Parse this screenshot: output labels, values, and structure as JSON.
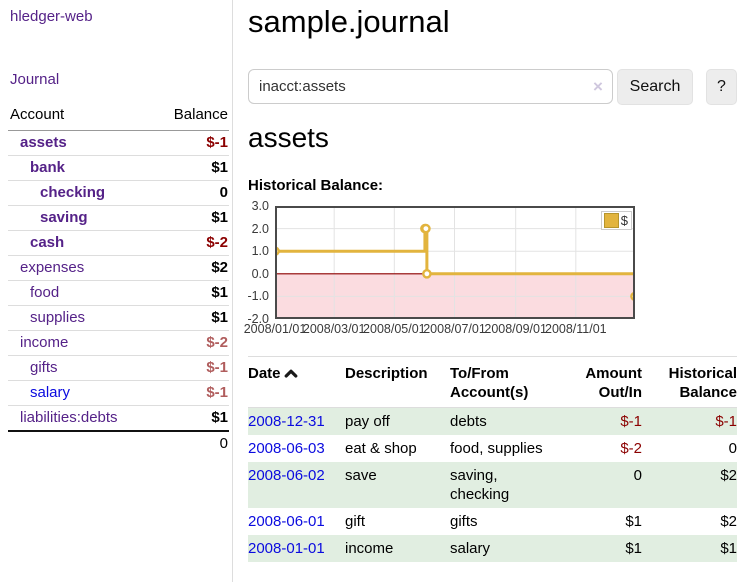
{
  "theme": {
    "link-purple": "#552288",
    "link-blue": "#0b0bdf",
    "negative": "#8b0000",
    "negative-soft": "#b05d5d",
    "stripe-green": "#e1eee1",
    "series-gold": "#e2b43e"
  },
  "app": {
    "title": "hledger-web"
  },
  "sidebar": {
    "nav": {
      "journal_label": "Journal"
    },
    "accounts": {
      "headers": {
        "account": "Account",
        "balance": "Balance"
      },
      "rows": [
        {
          "name": "assets",
          "indent": 0,
          "matched": true,
          "balance": "$-1",
          "tone": "neg"
        },
        {
          "name": "bank",
          "indent": 1,
          "matched": true,
          "balance": "$1",
          "tone": "pos"
        },
        {
          "name": "checking",
          "indent": 2,
          "matched": true,
          "balance": "0",
          "tone": "pos"
        },
        {
          "name": "saving",
          "indent": 2,
          "matched": true,
          "balance": "$1",
          "tone": "pos"
        },
        {
          "name": "cash",
          "indent": 1,
          "matched": true,
          "balance": "$-2",
          "tone": "neg"
        },
        {
          "name": "expenses",
          "indent": 0,
          "matched": false,
          "balance": "$2",
          "tone": "pos"
        },
        {
          "name": "food",
          "indent": 1,
          "matched": false,
          "balance": "$1",
          "tone": "pos"
        },
        {
          "name": "supplies",
          "indent": 1,
          "matched": false,
          "balance": "$1",
          "tone": "pos"
        },
        {
          "name": "income",
          "indent": 0,
          "matched": false,
          "balance": "$-2",
          "tone": "neg-soft"
        },
        {
          "name": "gifts",
          "indent": 1,
          "matched": false,
          "balance": "$-1",
          "tone": "neg-soft"
        },
        {
          "name": "salary",
          "indent": 1,
          "matched": false,
          "balance": "$-1",
          "tone": "neg-soft",
          "link_style": "unvisited"
        },
        {
          "name": "liabilities:debts",
          "indent": 0,
          "matched": false,
          "balance": "$1",
          "tone": "pos"
        }
      ],
      "total": "0"
    }
  },
  "main": {
    "title": "sample.journal",
    "search": {
      "value": "inacct:assets",
      "clear_icon": "×",
      "search_label": "Search",
      "help_label": "?"
    },
    "account_heading": "assets",
    "chart_heading": "Historical Balance:"
  },
  "chart_data": {
    "type": "line",
    "style": "step-after",
    "title": "Historical Balance",
    "series": [
      {
        "name": "$",
        "points": [
          [
            "2008-01-01",
            1
          ],
          [
            "2008-06-01",
            2
          ],
          [
            "2008-06-02",
            2
          ],
          [
            "2008-06-03",
            0
          ],
          [
            "2008-12-31",
            -1
          ]
        ]
      }
    ],
    "xlim": [
      "2008-01-01",
      "2008-12-31"
    ],
    "ylim": [
      -2,
      3
    ],
    "x_ticks": [
      "2008/01/01",
      "2008/03/01",
      "2008/05/01",
      "2008/07/01",
      "2008/09/01",
      "2008/11/01"
    ],
    "y_ticks": [
      "3.0",
      "2.0",
      "1.0",
      "0.0",
      "-1.0",
      "-2.0"
    ],
    "legend": {
      "label": "$",
      "position": "top-right"
    },
    "grid": true,
    "negative_region_shaded": true,
    "colors": {
      "line": "#e2b43e",
      "marker_fill": "#ffffff",
      "negative_region": "#fbdce0",
      "zero_line": "#900000",
      "grid": "#e3e3e3",
      "border": "#4a4a4a"
    }
  },
  "register": {
    "headers": {
      "date": "Date",
      "description": "Description",
      "accounts": "To/From Account(s)",
      "amount": "Amount Out/In",
      "balance": "Historical Balance"
    },
    "rows": [
      {
        "date": "2008-12-31",
        "description": "pay off",
        "accounts": "debts",
        "amount": "$-1",
        "amount_negative": true,
        "balance": "$-1",
        "balance_negative": true
      },
      {
        "date": "2008-06-03",
        "description": "eat & shop",
        "accounts": "food, supplies",
        "amount": "$-2",
        "amount_negative": true,
        "balance": "0",
        "balance_negative": false
      },
      {
        "date": "2008-06-02",
        "description": "save",
        "accounts": "saving, checking",
        "amount": "0",
        "amount_negative": false,
        "balance": "$2",
        "balance_negative": false
      },
      {
        "date": "2008-06-01",
        "description": "gift",
        "accounts": "gifts",
        "amount": "$1",
        "amount_negative": false,
        "balance": "$2",
        "balance_negative": false
      },
      {
        "date": "2008-01-01",
        "description": "income",
        "accounts": "salary",
        "amount": "$1",
        "amount_negative": false,
        "balance": "$1",
        "balance_negative": false
      }
    ]
  }
}
